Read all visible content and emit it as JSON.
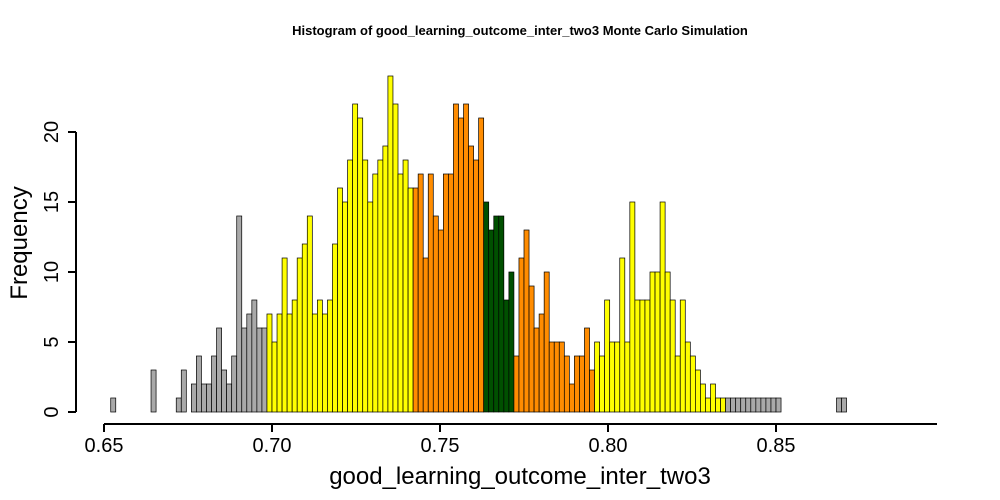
{
  "chart_data": {
    "type": "bar",
    "title": "Histogram of  good_learning_outcome_inter_two3  Monte Carlo Simulation",
    "xlabel": "good_learning_outcome_inter_two3",
    "ylabel": "Frequency",
    "xlim": [
      0.65,
      0.886
    ],
    "ylim": [
      0,
      24
    ],
    "x_ticks": [
      "0.65",
      "0.70",
      "0.75",
      "0.80",
      "0.85"
    ],
    "y_ticks": [
      "0",
      "5",
      "10",
      "15",
      "20"
    ],
    "bin_start": 0.652,
    "bin_width": 0.0015,
    "frequencies": [
      1,
      0,
      0,
      0,
      0,
      0,
      0,
      0,
      3,
      0,
      0,
      0,
      0,
      1,
      3,
      0,
      2,
      4,
      2,
      2,
      4,
      6,
      3,
      2,
      4,
      14,
      6,
      7,
      8,
      6,
      6,
      7,
      5,
      7,
      11,
      7,
      8,
      11,
      12,
      14,
      7,
      8,
      7,
      8,
      12,
      16,
      15,
      18,
      22,
      21,
      18,
      15,
      17,
      18,
      19,
      24,
      22,
      17,
      18,
      16,
      16,
      17,
      11,
      17,
      14,
      13,
      17,
      17,
      22,
      21,
      22,
      19,
      18,
      21,
      15,
      13,
      14,
      14,
      8,
      10,
      4,
      11,
      13,
      9,
      6,
      7,
      10,
      5,
      5,
      5,
      4,
      2,
      4,
      4,
      6,
      3,
      5,
      4,
      8,
      5,
      5,
      11,
      5,
      15,
      8,
      8,
      8,
      10,
      10,
      15,
      10,
      8,
      4,
      8,
      5,
      4,
      3,
      2,
      1,
      2,
      1,
      1,
      1,
      1,
      1,
      1,
      1,
      1,
      1,
      1,
      1,
      1,
      1,
      0,
      0,
      0,
      0,
      0,
      0,
      0,
      0,
      0,
      0,
      0,
      1,
      1
    ],
    "colors": {
      "outer": "#a9a9a9",
      "band1": "#ffff00",
      "band2": "#ff8c00",
      "center": "#005000"
    },
    "bands": [
      {
        "color": "outer",
        "from": 0.0,
        "to": 0.698
      },
      {
        "color": "band1",
        "from": 0.698,
        "to": 0.7415
      },
      {
        "color": "band2",
        "from": 0.7415,
        "to": 0.7625
      },
      {
        "color": "center",
        "from": 0.7625,
        "to": 0.7725
      },
      {
        "color": "band2",
        "from": 0.7725,
        "to": 0.7955
      },
      {
        "color": "band1",
        "from": 0.7955,
        "to": 0.835
      },
      {
        "color": "outer",
        "from": 0.835,
        "to": 1.0
      }
    ]
  }
}
